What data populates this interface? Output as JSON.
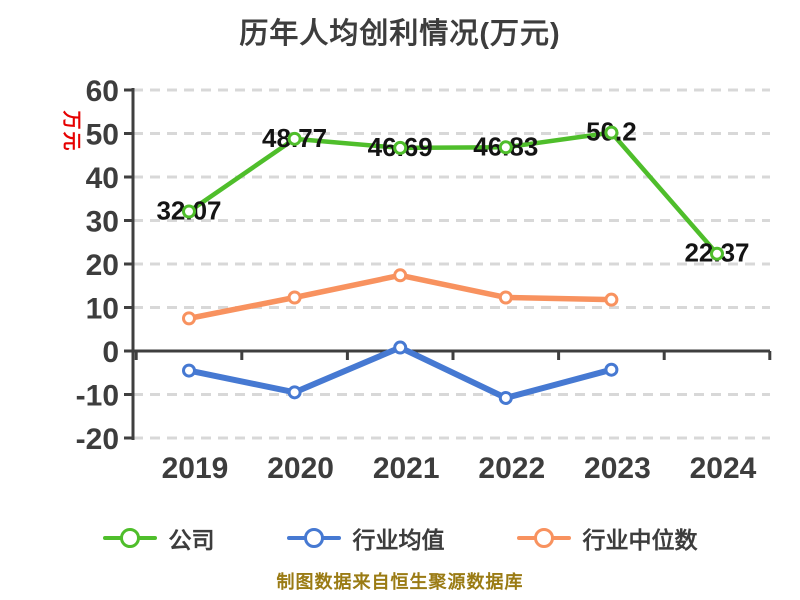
{
  "page": {
    "background": "#ffffff"
  },
  "chart_data": {
    "type": "line",
    "title": "历年人均创利情况(万元)",
    "ylabel": "万元",
    "ylabel_color": "#E60000",
    "xlabel": "",
    "x": [
      "2019",
      "2020",
      "2021",
      "2022",
      "2023",
      "2024"
    ],
    "ylim": [
      -20,
      60
    ],
    "ytick_step": 10,
    "yticks": [
      60,
      50,
      40,
      30,
      20,
      10,
      0,
      -10,
      -20
    ],
    "grid": "dashed-horizontal",
    "legend_position": "bottom",
    "series": [
      {
        "name": "公司",
        "color": "#4FBE2B",
        "values": [
          32.07,
          48.77,
          46.69,
          46.83,
          50.2,
          22.37
        ],
        "data_labels": [
          "32.07",
          "48.77",
          "46.69",
          "46.83",
          "50.2",
          "22.37"
        ]
      },
      {
        "name": "行业均值",
        "color": "#4679D2",
        "values": [
          -4.5,
          -9.5,
          0.8,
          -10.8,
          -4.3,
          null
        ],
        "data_labels": null
      },
      {
        "name": "行业中位数",
        "color": "#F8925F",
        "values": [
          7.5,
          12.3,
          17.4,
          12.3,
          11.8,
          null
        ],
        "data_labels": null
      }
    ],
    "source_note": "制图数据来自恒生聚源数据库",
    "source_note_color": "#9A7B14",
    "text_color": "#3D3D3D",
    "grid_color": "#D8D8D8",
    "axis_color": "#3F3F3F",
    "data_label_color": "#141414"
  }
}
